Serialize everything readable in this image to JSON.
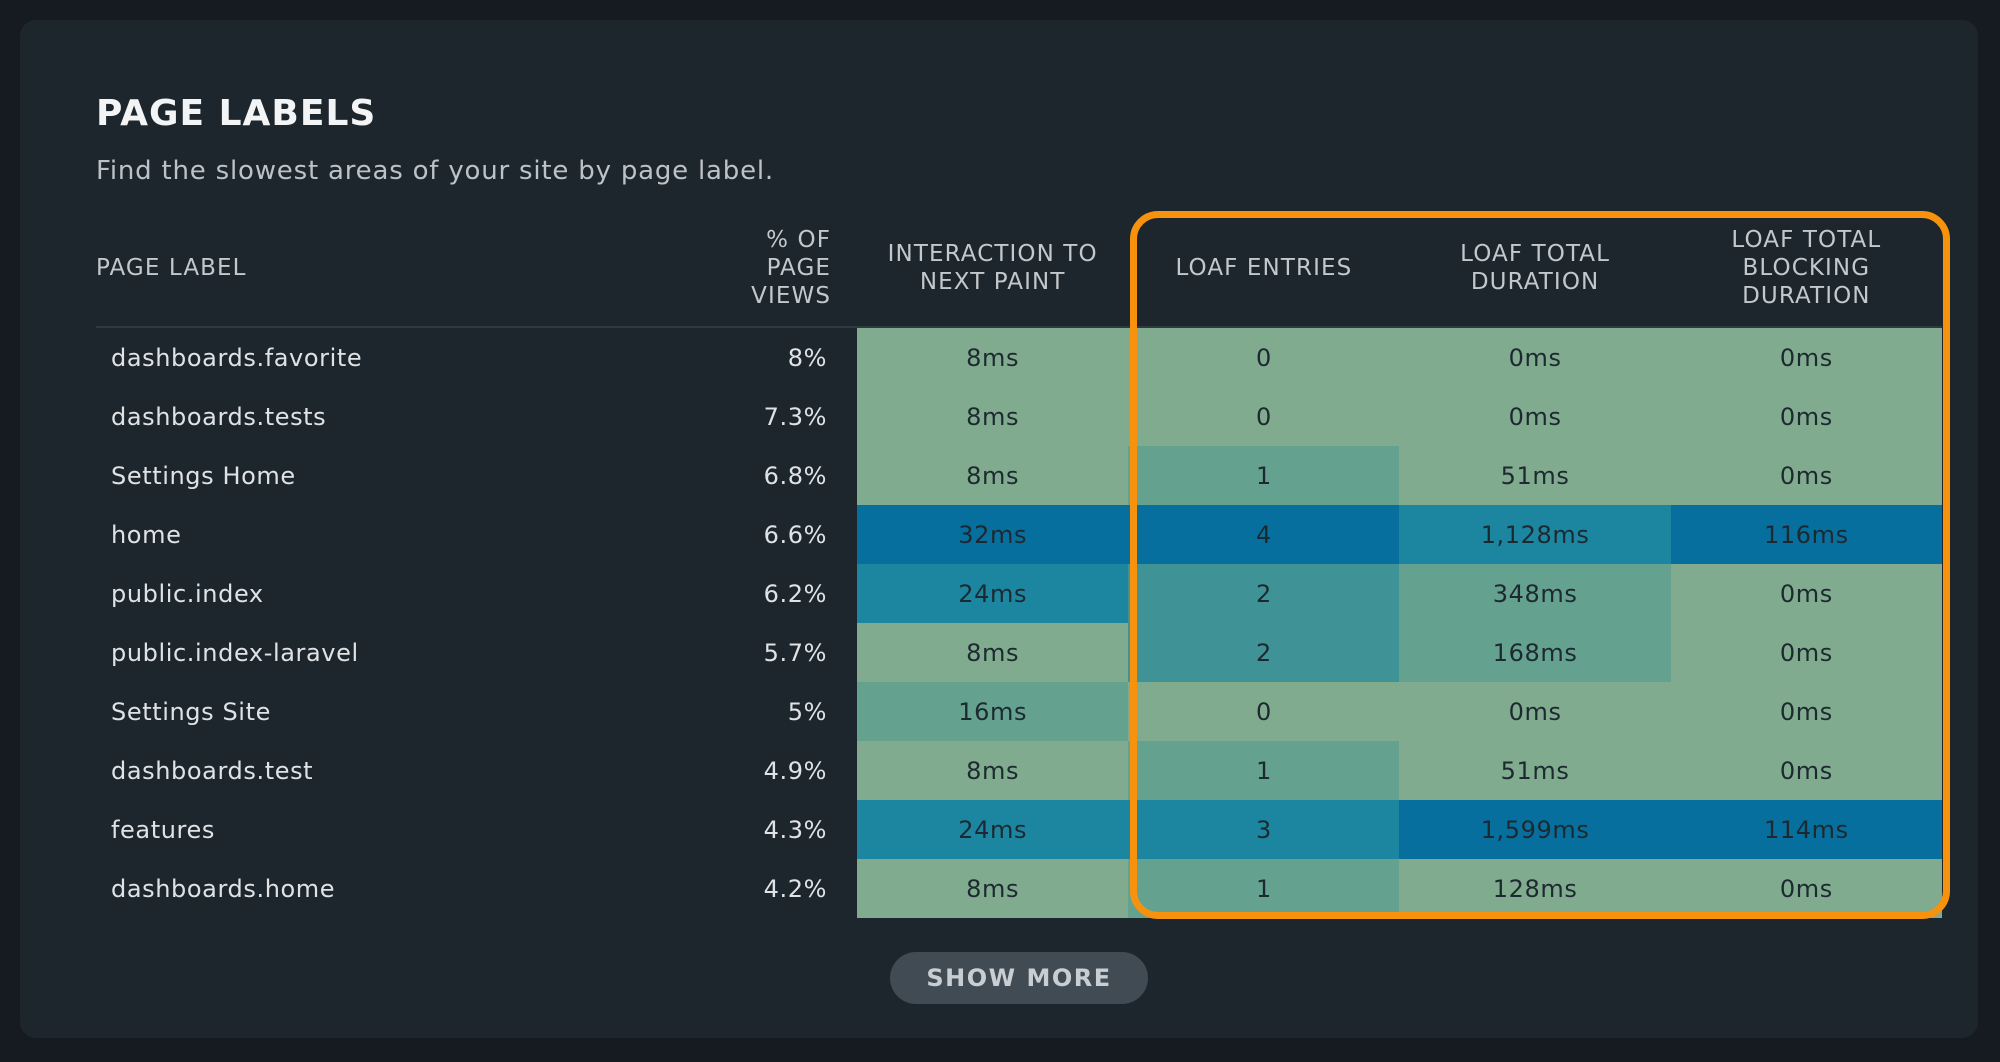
{
  "header": {
    "title": "PAGE LABELS",
    "subtitle": "Find the slowest areas of your site by page label."
  },
  "table": {
    "columns": [
      "PAGE LABEL",
      "% OF PAGE VIEWS",
      "INTERACTION TO NEXT PAINT",
      "LOAF ENTRIES",
      "LOAF TOTAL DURATION",
      "LOAF TOTAL BLOCKING DURATION"
    ],
    "rows": [
      {
        "label": "dashboards.favorite",
        "views": "8%",
        "inp": "8ms",
        "entries": "0",
        "duration": "0ms",
        "blocking": "0ms",
        "levels": [
          0,
          0,
          0,
          0
        ]
      },
      {
        "label": "dashboards.tests",
        "views": "7.3%",
        "inp": "8ms",
        "entries": "0",
        "duration": "0ms",
        "blocking": "0ms",
        "levels": [
          0,
          0,
          0,
          0
        ]
      },
      {
        "label": "Settings Home",
        "views": "6.8%",
        "inp": "8ms",
        "entries": "1",
        "duration": "51ms",
        "blocking": "0ms",
        "levels": [
          0,
          1,
          0,
          0
        ]
      },
      {
        "label": "home",
        "views": "6.6%",
        "inp": "32ms",
        "entries": "4",
        "duration": "1,128ms",
        "blocking": "116ms",
        "levels": [
          4,
          4,
          3,
          4
        ]
      },
      {
        "label": "public.index",
        "views": "6.2%",
        "inp": "24ms",
        "entries": "2",
        "duration": "348ms",
        "blocking": "0ms",
        "levels": [
          3,
          2,
          1,
          0
        ]
      },
      {
        "label": "public.index-laravel",
        "views": "5.7%",
        "inp": "8ms",
        "entries": "2",
        "duration": "168ms",
        "blocking": "0ms",
        "levels": [
          0,
          2,
          1,
          0
        ]
      },
      {
        "label": "Settings Site",
        "views": "5%",
        "inp": "16ms",
        "entries": "0",
        "duration": "0ms",
        "blocking": "0ms",
        "levels": [
          1,
          0,
          0,
          0
        ]
      },
      {
        "label": "dashboards.test",
        "views": "4.9%",
        "inp": "8ms",
        "entries": "1",
        "duration": "51ms",
        "blocking": "0ms",
        "levels": [
          0,
          1,
          0,
          0
        ]
      },
      {
        "label": "features",
        "views": "4.3%",
        "inp": "24ms",
        "entries": "3",
        "duration": "1,599ms",
        "blocking": "114ms",
        "levels": [
          3,
          3,
          4,
          4
        ]
      },
      {
        "label": "dashboards.home",
        "views": "4.2%",
        "inp": "8ms",
        "entries": "1",
        "duration": "128ms",
        "blocking": "0ms",
        "levels": [
          0,
          1,
          0,
          0
        ]
      }
    ]
  },
  "show_more_label": "SHOW MORE",
  "colors": {
    "background": "#151b21",
    "card": "#1e262d",
    "highlight": "#f7920f",
    "heat_levels": [
      "#80ab8e",
      "#65a18f",
      "#3f9396",
      "#1c86a0",
      "#066f9d"
    ]
  }
}
